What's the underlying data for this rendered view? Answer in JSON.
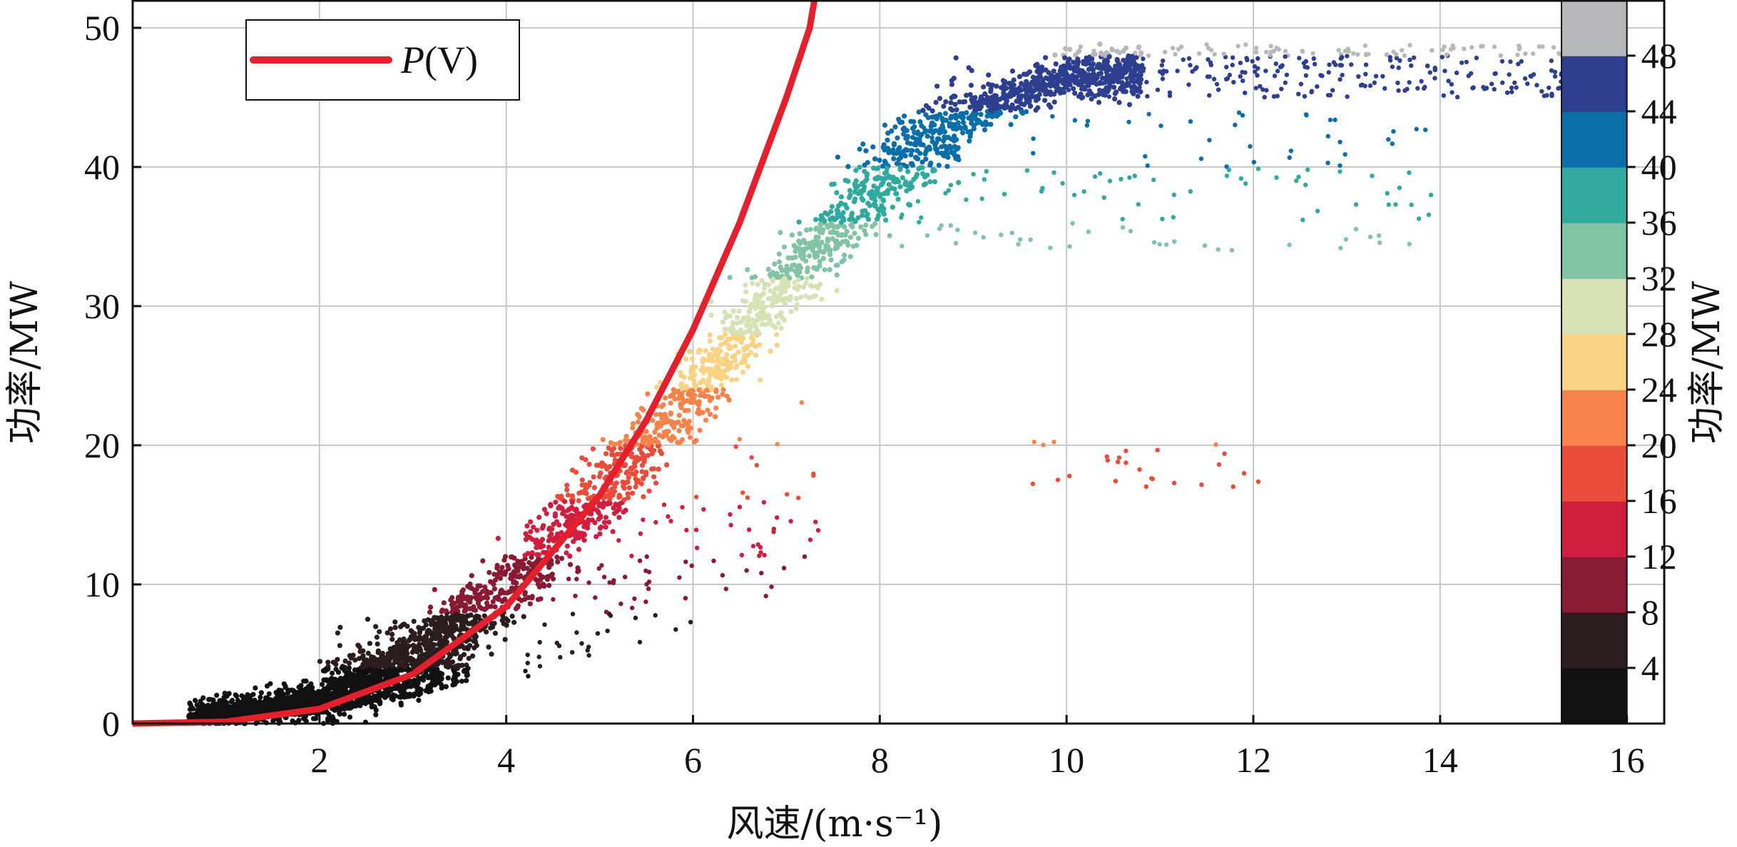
{
  "chart_data": {
    "type": "scatter",
    "xlabel": "风速/(m·s⁻¹)",
    "ylabel": "功率/MW",
    "colorbar_label": "功率/MW",
    "xlim": [
      0,
      16.4
    ],
    "ylim": [
      0,
      52
    ],
    "x_ticks": [
      "2",
      "4",
      "6",
      "8",
      "10",
      "12",
      "14",
      "16"
    ],
    "x_tick_values": [
      2,
      4,
      6,
      8,
      10,
      12,
      14,
      16
    ],
    "y_ticks": [
      "0",
      "10",
      "20",
      "30",
      "40",
      "50"
    ],
    "y_tick_values": [
      0,
      10,
      20,
      30,
      40,
      50
    ],
    "grid": true,
    "legend": {
      "position": "top-left",
      "label": "P(V)",
      "label_main": "P",
      "label_arg": "(V)",
      "color": "#e3202b"
    },
    "curve": {
      "name": "P(V)",
      "color": "#e3202b",
      "x": [
        0,
        1,
        2,
        3,
        4,
        5,
        5.5,
        6,
        6.5,
        7,
        7.25,
        7.3
      ],
      "y": [
        0,
        0.13,
        1.05,
        3.55,
        8.4,
        16.4,
        21.8,
        28.3,
        36.0,
        45.0,
        50.0,
        52.0
      ]
    },
    "colorbar": {
      "bounds": [
        0,
        4,
        8,
        12,
        16,
        20,
        24,
        28,
        32,
        36,
        40,
        44,
        48,
        52
      ],
      "tick_labels": [
        "4",
        "8",
        "12",
        "16",
        "20",
        "24",
        "28",
        "32",
        "36",
        "40",
        "44",
        "48"
      ],
      "colors": [
        "#111111",
        "#2b1c1e",
        "#891a33",
        "#d01e3f",
        "#e94c3a",
        "#f7834a",
        "#f9d283",
        "#d6e2b4",
        "#82c2a5",
        "#30a99f",
        "#0b6ea8",
        "#2e3f8f",
        "#b7b8bc"
      ]
    },
    "scatter_summary": {
      "points": [
        {
          "x": 0.6,
          "y": 0.5
        },
        {
          "x": 1.5,
          "y": 1.5
        },
        {
          "x": 2.5,
          "y": 3.0
        },
        {
          "x": 3.5,
          "y": 8.0
        },
        {
          "x": 4.5,
          "y": 14.0
        },
        {
          "x": 5.5,
          "y": 21.0
        },
        {
          "x": 6.5,
          "y": 29.0
        },
        {
          "x": 7.5,
          "y": 37.0
        },
        {
          "x": 8.5,
          "y": 43.0
        },
        {
          "x": 9.5,
          "y": 46.0
        },
        {
          "x": 10.5,
          "y": 47.0
        },
        {
          "x": 12.0,
          "y": 47.5
        },
        {
          "x": 14.0,
          "y": 47.5
        },
        {
          "x": 15.3,
          "y": 47.0
        }
      ]
    }
  }
}
